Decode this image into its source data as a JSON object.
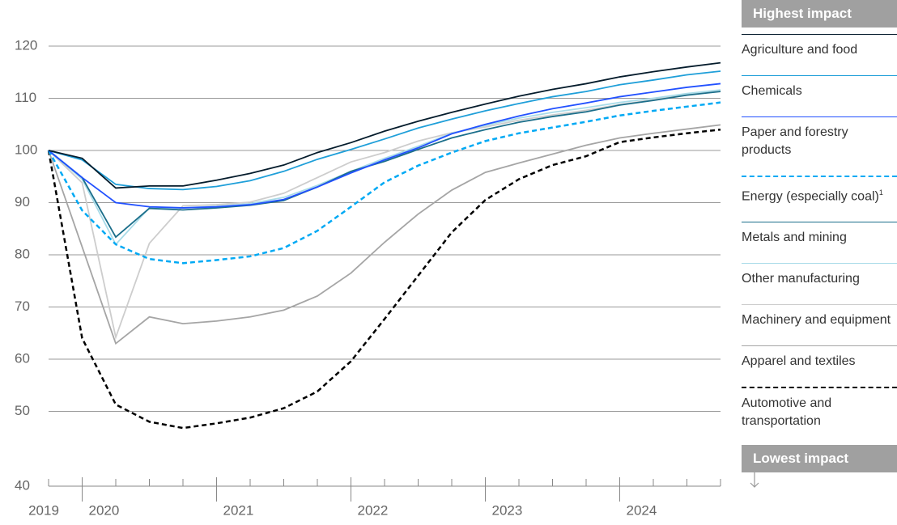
{
  "chart_data": {
    "type": "line",
    "categories": [
      "2019",
      "2020",
      null,
      null,
      null,
      "2021",
      null,
      null,
      null,
      "2022",
      null,
      null,
      null,
      "2023",
      null,
      null,
      null,
      "2024",
      null,
      null,
      null
    ],
    "ylim": [
      40,
      120
    ],
    "yticks": [
      40,
      50,
      60,
      70,
      80,
      90,
      100,
      110,
      120
    ],
    "grid": true,
    "legend_top": "Highest impact",
    "legend_bottom": "Lowest impact",
    "series": [
      {
        "name": "Agriculture and food",
        "color": "#051c2c",
        "dashed": false,
        "values": [
          100,
          98.5,
          92.8,
          93.2,
          93.2,
          94.3,
          95.6,
          97.2,
          99.6,
          101.5,
          103.7,
          105.6,
          107.3,
          108.9,
          110.4,
          111.7,
          112.8,
          114.1,
          115.1,
          116.0,
          116.8
        ]
      },
      {
        "name": "Chemicals",
        "color": "#1f9fd9",
        "dashed": false,
        "values": [
          100,
          98.2,
          93.5,
          92.7,
          92.5,
          93.1,
          94.2,
          96.0,
          98.3,
          100.2,
          102.2,
          104.3,
          106.0,
          107.6,
          109.0,
          110.3,
          111.3,
          112.6,
          113.5,
          114.5,
          115.2
        ]
      },
      {
        "name": "Paper and forestry products",
        "color": "#2251ff",
        "dashed": false,
        "values": [
          100,
          94.8,
          90.0,
          89.2,
          89.0,
          89.2,
          89.6,
          90.6,
          93.0,
          95.7,
          98.2,
          100.5,
          103.2,
          105.0,
          106.6,
          108.0,
          109.1,
          110.3,
          111.2,
          112.1,
          112.8
        ]
      },
      {
        "name": "Energy (especially coal)",
        "note": "1",
        "color": "#00a9f4",
        "dashed": true,
        "values": [
          100,
          88.5,
          82.0,
          79.2,
          78.4,
          79.0,
          79.7,
          81.3,
          84.6,
          89.2,
          93.9,
          97.1,
          99.6,
          101.8,
          103.3,
          104.4,
          105.5,
          106.7,
          107.6,
          108.4,
          109.2
        ]
      },
      {
        "name": "Metals and mining",
        "color": "#1b6e8a",
        "dashed": false,
        "values": [
          100,
          94.8,
          83.4,
          88.9,
          88.6,
          89.0,
          89.5,
          90.4,
          93.0,
          96.0,
          97.9,
          100.2,
          102.4,
          104.0,
          105.4,
          106.5,
          107.4,
          108.7,
          109.6,
          110.6,
          111.3
        ]
      },
      {
        "name": "Other manufacturing",
        "color": "#a8dbe8",
        "dashed": false,
        "values": [
          100,
          94.5,
          82.0,
          89.0,
          89.0,
          89.3,
          89.8,
          91.0,
          93.3,
          96.0,
          98.5,
          100.8,
          103.3,
          104.8,
          106.2,
          107.3,
          108.2,
          109.2,
          110.0,
          110.9,
          111.6
        ]
      },
      {
        "name": "Machinery and equipment",
        "color": "#cdcdcd",
        "dashed": false,
        "values": [
          100,
          93.8,
          64.2,
          82.2,
          89.4,
          89.6,
          90.1,
          91.8,
          94.8,
          97.8,
          99.6,
          101.8,
          103.4,
          104.5,
          105.8,
          106.8,
          107.7,
          108.8,
          109.7,
          110.7,
          111.5
        ]
      },
      {
        "name": "Apparel and textiles",
        "color": "#a5a5a5",
        "dashed": false,
        "values": [
          100,
          81.5,
          63.0,
          68.1,
          66.8,
          67.3,
          68.1,
          69.4,
          72.1,
          76.5,
          82.4,
          87.8,
          92.4,
          95.8,
          97.6,
          99.3,
          101.0,
          102.4,
          103.3,
          104.1,
          104.9
        ]
      },
      {
        "name": "Automotive and transportation",
        "color": "#000000",
        "dashed": true,
        "values": [
          100,
          64.0,
          51.3,
          48.0,
          46.8,
          47.7,
          48.8,
          50.6,
          53.8,
          59.6,
          67.7,
          76.0,
          84.3,
          90.5,
          94.5,
          97.2,
          98.9,
          101.6,
          102.5,
          103.3,
          104.0
        ]
      }
    ]
  }
}
